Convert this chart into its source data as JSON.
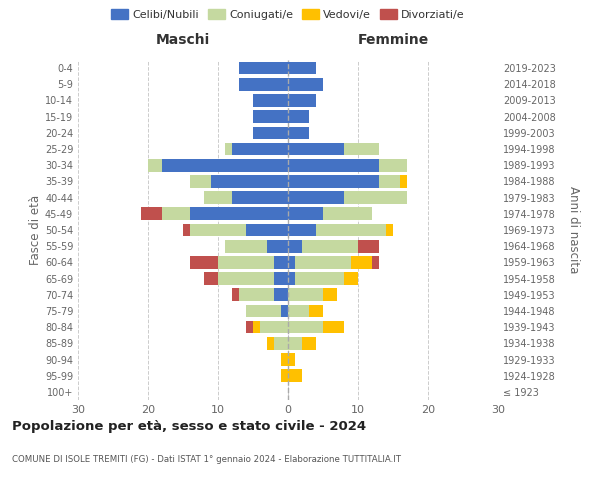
{
  "age_groups": [
    "100+",
    "95-99",
    "90-94",
    "85-89",
    "80-84",
    "75-79",
    "70-74",
    "65-69",
    "60-64",
    "55-59",
    "50-54",
    "45-49",
    "40-44",
    "35-39",
    "30-34",
    "25-29",
    "20-24",
    "15-19",
    "10-14",
    "5-9",
    "0-4"
  ],
  "birth_years": [
    "≤ 1923",
    "1924-1928",
    "1929-1933",
    "1934-1938",
    "1939-1943",
    "1944-1948",
    "1949-1953",
    "1954-1958",
    "1959-1963",
    "1964-1968",
    "1969-1973",
    "1974-1978",
    "1979-1983",
    "1984-1988",
    "1989-1993",
    "1994-1998",
    "1999-2003",
    "2004-2008",
    "2009-2013",
    "2014-2018",
    "2019-2023"
  ],
  "colors": {
    "celibi": "#4472c4",
    "coniugati": "#c5d9a0",
    "vedovi": "#ffc000",
    "divorziati": "#c0504d"
  },
  "males": {
    "celibi": [
      0,
      0,
      0,
      0,
      0,
      1,
      2,
      2,
      2,
      3,
      6,
      14,
      8,
      11,
      18,
      8,
      5,
      5,
      5,
      7,
      7
    ],
    "coniugati": [
      0,
      0,
      0,
      2,
      4,
      5,
      5,
      8,
      8,
      6,
      8,
      4,
      4,
      3,
      2,
      1,
      0,
      0,
      0,
      0,
      0
    ],
    "vedovi": [
      0,
      1,
      1,
      1,
      1,
      0,
      0,
      0,
      0,
      0,
      0,
      0,
      0,
      0,
      0,
      0,
      0,
      0,
      0,
      0,
      0
    ],
    "divorziati": [
      0,
      0,
      0,
      0,
      1,
      0,
      1,
      2,
      4,
      0,
      1,
      3,
      0,
      0,
      0,
      0,
      0,
      0,
      0,
      0,
      0
    ]
  },
  "females": {
    "nubili": [
      0,
      0,
      0,
      0,
      0,
      0,
      0,
      1,
      1,
      2,
      4,
      5,
      8,
      13,
      13,
      8,
      3,
      3,
      4,
      5,
      4
    ],
    "coniugate": [
      0,
      0,
      0,
      2,
      5,
      3,
      5,
      7,
      8,
      8,
      10,
      7,
      9,
      3,
      4,
      5,
      0,
      0,
      0,
      0,
      0
    ],
    "vedove": [
      0,
      2,
      1,
      2,
      3,
      2,
      2,
      2,
      3,
      0,
      1,
      0,
      0,
      1,
      0,
      0,
      0,
      0,
      0,
      0,
      0
    ],
    "divorziate": [
      0,
      0,
      0,
      0,
      0,
      0,
      0,
      0,
      1,
      3,
      0,
      0,
      0,
      0,
      0,
      0,
      0,
      0,
      0,
      0,
      0
    ]
  },
  "xlim": 30,
  "title": "Popolazione per età, sesso e stato civile - 2024",
  "subtitle": "COMUNE DI ISOLE TREMITI (FG) - Dati ISTAT 1° gennaio 2024 - Elaborazione TUTTITALIA.IT",
  "ylabel_left": "Fasce di età",
  "ylabel_right": "Anni di nascita",
  "header_left": "Maschi",
  "header_right": "Femmine"
}
